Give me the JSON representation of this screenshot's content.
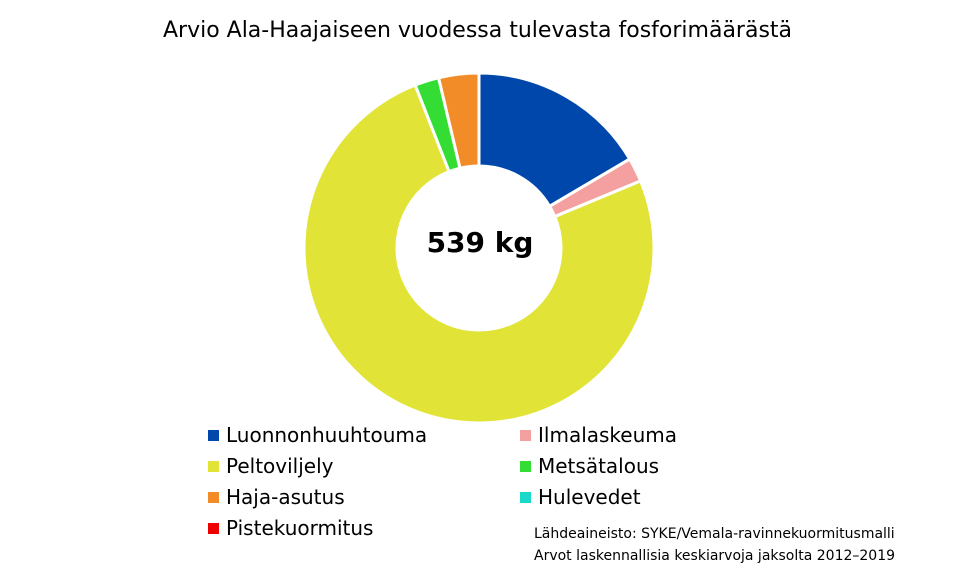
{
  "title": "Arvio Ala-Haajaiseen vuodessa tulevasta fosforimäärästä",
  "center_label": "539 kg",
  "source": {
    "line1": "Lähdeaineisto: SYKE/Vemala-ravinnekuormitusmalli",
    "line2": "Arvot laskennallisia keskiarvoja jaksolta 2012–2019"
  },
  "chart_data": {
    "type": "pie",
    "subtype": "donut",
    "total": "539 kg",
    "unit": "kg",
    "slices": [
      {
        "name": "Luonnonhuuhtouma",
        "value": 89,
        "color": "#0047AB"
      },
      {
        "name": "Ilmalaskeuma",
        "value": 12,
        "color": "#F4A0A0"
      },
      {
        "name": "Peltoviljely",
        "value": 406,
        "color": "#E1E436"
      },
      {
        "name": "Metsätalous",
        "value": 12,
        "color": "#33DD33"
      },
      {
        "name": "Haja-asutus",
        "value": 20,
        "color": "#F28C28"
      },
      {
        "name": "Hulevedet",
        "value": 0,
        "color": "#1BD9C8"
      },
      {
        "name": "Pistekuormitus",
        "value": 0,
        "color": "#EE0000"
      }
    ],
    "legend_position": "bottom"
  }
}
